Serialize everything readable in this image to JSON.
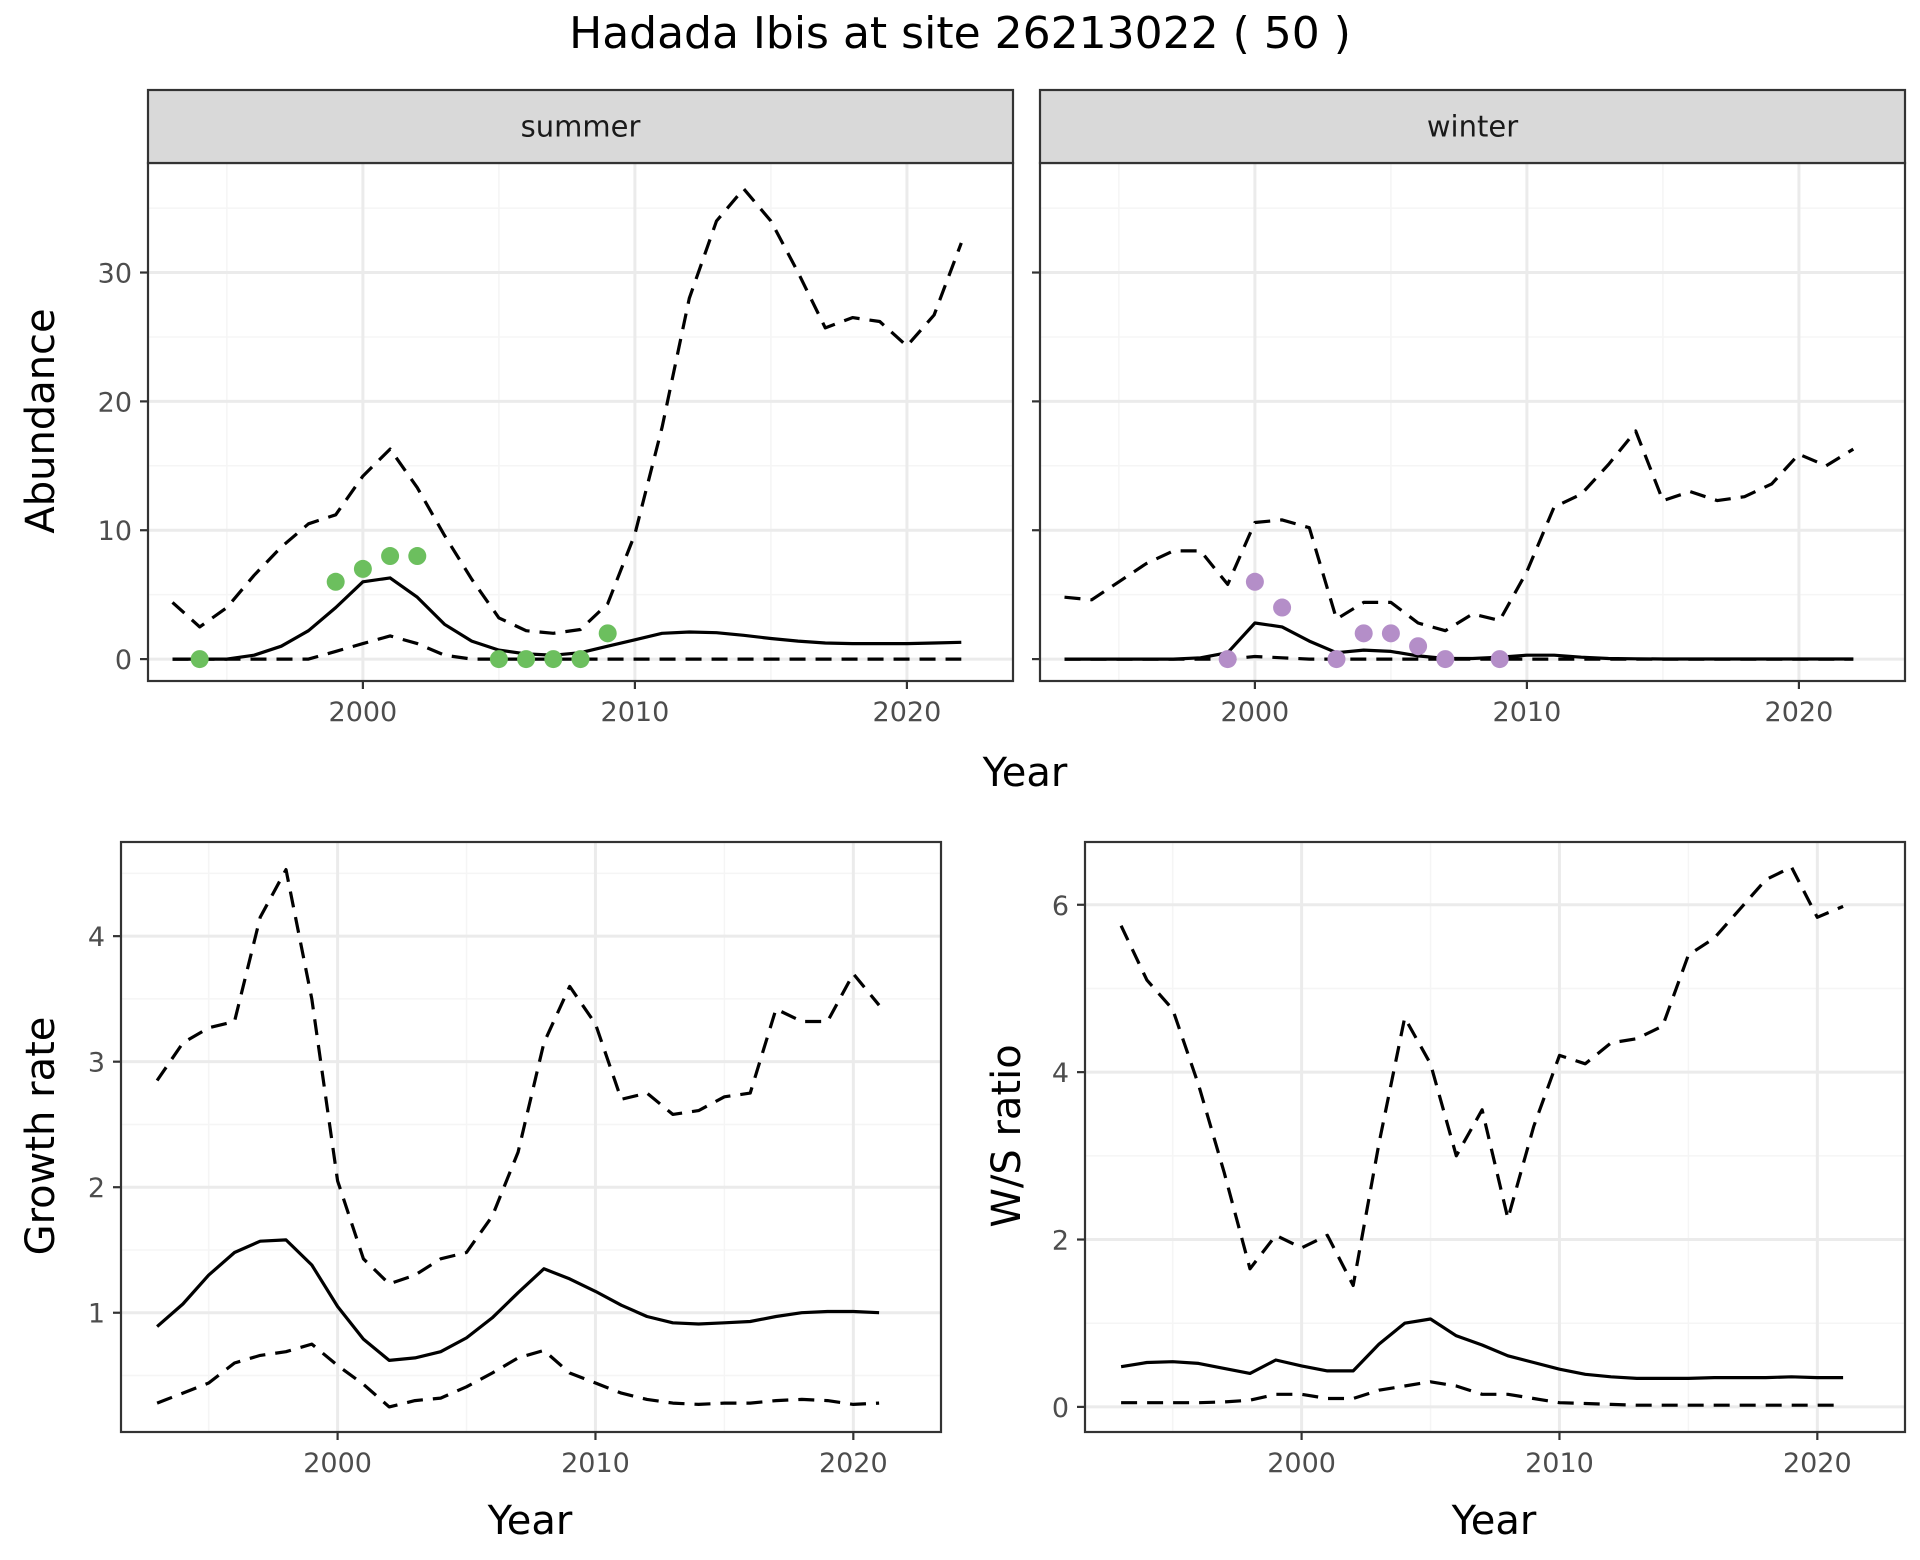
{
  "title": "Hadada Ibis at site 26213022 ( 50 )",
  "colors": {
    "summer_points": "#6cbf5e",
    "winter_points": "#b48ec8",
    "line": "#000000",
    "grid_major": "#ebebeb",
    "grid_minor": "#f5f5f5",
    "strip_fill": "#d9d9d9",
    "panel_border": "#333333"
  },
  "chart_data": [
    {
      "type": "line",
      "facet": "summer",
      "strip_label": "summer",
      "xlabel": "Year",
      "ylabel": "Abundance",
      "xlim": [
        1992.1,
        2023.9
      ],
      "ylim": [
        -1.7,
        38.5
      ],
      "xticks": [
        2000,
        2010,
        2020
      ],
      "yticks": [
        0,
        10,
        20,
        30
      ],
      "x": [
        1993,
        1994,
        1995,
        1996,
        1997,
        1998,
        1999,
        2000,
        2001,
        2002,
        2003,
        2004,
        2005,
        2006,
        2007,
        2008,
        2009,
        2010,
        2011,
        2012,
        2013,
        2014,
        2015,
        2016,
        2017,
        2018,
        2019,
        2020,
        2021,
        2022
      ],
      "series": [
        {
          "style": "solid",
          "values": [
            0,
            0,
            0,
            0.3,
            1,
            2.2,
            4,
            6,
            6.3,
            4.8,
            2.7,
            1.4,
            0.7,
            0.4,
            0.3,
            0.5,
            1,
            1.5,
            2,
            2.1,
            2.05,
            1.85,
            1.6,
            1.4,
            1.25,
            1.2,
            1.2,
            1.2,
            1.25,
            1.3
          ]
        },
        {
          "style": "dashed",
          "values": [
            4.4,
            2.5,
            4,
            6.5,
            8.7,
            10.5,
            11.2,
            14.2,
            16.3,
            13.3,
            9.6,
            6.2,
            3.2,
            2.2,
            2,
            2.3,
            4.3,
            9.7,
            18,
            28,
            34,
            36.5,
            34,
            30,
            25.7,
            26.5,
            26.2,
            24.3,
            26.7,
            32.3
          ]
        },
        {
          "style": "dashed",
          "values": [
            0,
            0,
            0,
            0,
            0,
            0,
            0.6,
            1.2,
            1.8,
            1.2,
            0.3,
            0,
            0,
            0,
            0,
            0,
            0,
            0,
            0,
            0,
            0,
            0,
            0,
            0,
            0,
            0,
            0,
            0,
            0,
            0
          ]
        }
      ],
      "points": {
        "x": [
          1994,
          1999,
          2000,
          2001,
          2002,
          2005,
          2006,
          2007,
          2008,
          2009
        ],
        "y": [
          0,
          6,
          7,
          8,
          8,
          0,
          0,
          0,
          0,
          2
        ]
      }
    },
    {
      "type": "line",
      "facet": "winter",
      "strip_label": "winter",
      "xlabel": "Year",
      "ylabel": "Abundance",
      "xlim": [
        1992.1,
        2023.9
      ],
      "ylim": [
        -1.7,
        38.5
      ],
      "xticks": [
        2000,
        2010,
        2020
      ],
      "yticks": [
        0,
        10,
        20,
        30
      ],
      "x": [
        1993,
        1994,
        1995,
        1996,
        1997,
        1998,
        1999,
        2000,
        2001,
        2002,
        2003,
        2004,
        2005,
        2006,
        2007,
        2008,
        2009,
        2010,
        2011,
        2012,
        2013,
        2014,
        2015,
        2016,
        2017,
        2018,
        2019,
        2020,
        2021,
        2022
      ],
      "series": [
        {
          "style": "solid",
          "values": [
            0,
            0,
            0,
            0,
            0,
            0.1,
            0.5,
            2.8,
            2.5,
            1.4,
            0.5,
            0.7,
            0.6,
            0.25,
            0.05,
            0.05,
            0.15,
            0.3,
            0.3,
            0.15,
            0.05,
            0.02,
            0.01,
            0.01,
            0.01,
            0.01,
            0.01,
            0.01,
            0.01,
            0.01
          ]
        },
        {
          "style": "dashed",
          "values": [
            4.8,
            4.6,
            6,
            7.4,
            8.4,
            8.4,
            5.8,
            10.6,
            10.8,
            10.2,
            3.1,
            4.4,
            4.4,
            2.8,
            2.2,
            3.5,
            3,
            6.8,
            11.8,
            12.8,
            15.1,
            17.7,
            12.3,
            13,
            12.3,
            12.6,
            13.6,
            15.9,
            15,
            16.3
          ]
        },
        {
          "style": "dashed",
          "values": [
            0,
            0,
            0,
            0,
            0,
            0,
            0,
            0.2,
            0.1,
            0,
            0,
            0,
            0,
            0,
            0,
            0,
            0,
            0,
            0,
            0,
            0,
            0,
            0,
            0,
            0,
            0,
            0,
            0,
            0,
            0
          ]
        }
      ],
      "points": {
        "x": [
          1999,
          2000,
          2001,
          2003,
          2004,
          2005,
          2006,
          2007,
          2009
        ],
        "y": [
          0,
          6,
          4,
          0,
          2,
          2,
          1,
          0,
          0
        ]
      }
    },
    {
      "type": "line",
      "xlabel": "Year",
      "ylabel": "Growth rate",
      "xlim": [
        1991.6,
        2023.4
      ],
      "ylim": [
        0.05,
        4.75
      ],
      "xticks": [
        2000,
        2010,
        2020
      ],
      "yticks": [
        1,
        2,
        3,
        4
      ],
      "x": [
        1993,
        1994,
        1995,
        1996,
        1997,
        1998,
        1999,
        2000,
        2001,
        2002,
        2003,
        2004,
        2005,
        2006,
        2007,
        2008,
        2009,
        2010,
        2011,
        2012,
        2013,
        2014,
        2015,
        2016,
        2017,
        2018,
        2019,
        2020,
        2021
      ],
      "series": [
        {
          "style": "solid",
          "values": [
            0.89,
            1.07,
            1.3,
            1.48,
            1.57,
            1.58,
            1.38,
            1.05,
            0.79,
            0.62,
            0.64,
            0.69,
            0.8,
            0.96,
            1.16,
            1.35,
            1.27,
            1.17,
            1.06,
            0.97,
            0.92,
            0.91,
            0.92,
            0.93,
            0.97,
            1,
            1.01,
            1.01,
            1
          ]
        },
        {
          "style": "dashed",
          "values": [
            2.85,
            3.15,
            3.27,
            3.32,
            4.15,
            4.53,
            3.5,
            2.05,
            1.43,
            1.23,
            1.3,
            1.43,
            1.48,
            1.77,
            2.28,
            3.15,
            3.6,
            3.3,
            2.7,
            2.75,
            2.58,
            2.61,
            2.72,
            2.75,
            3.42,
            3.32,
            3.32,
            3.7,
            3.45
          ]
        },
        {
          "style": "dashed",
          "values": [
            0.28,
            0.36,
            0.44,
            0.6,
            0.66,
            0.69,
            0.75,
            0.58,
            0.43,
            0.25,
            0.3,
            0.32,
            0.41,
            0.52,
            0.64,
            0.7,
            0.52,
            0.44,
            0.36,
            0.31,
            0.28,
            0.27,
            0.28,
            0.28,
            0.3,
            0.31,
            0.3,
            0.27,
            0.28
          ]
        }
      ]
    },
    {
      "type": "line",
      "xlabel": "Year",
      "ylabel": "W/S ratio",
      "xlim": [
        1991.6,
        2023.4
      ],
      "ylim": [
        -0.3,
        6.75
      ],
      "xticks": [
        2000,
        2010,
        2020
      ],
      "yticks": [
        0,
        2,
        4,
        6
      ],
      "x": [
        1993,
        1994,
        1995,
        1996,
        1997,
        1998,
        1999,
        2000,
        2001,
        2002,
        2003,
        2004,
        2005,
        2006,
        2007,
        2008,
        2009,
        2010,
        2011,
        2012,
        2013,
        2014,
        2015,
        2016,
        2017,
        2018,
        2019,
        2020,
        2021
      ],
      "series": [
        {
          "style": "solid",
          "values": [
            0.48,
            0.53,
            0.54,
            0.52,
            0.46,
            0.4,
            0.56,
            0.49,
            0.43,
            0.43,
            0.75,
            1,
            1.05,
            0.85,
            0.74,
            0.61,
            0.53,
            0.45,
            0.39,
            0.36,
            0.34,
            0.34,
            0.34,
            0.35,
            0.35,
            0.35,
            0.36,
            0.35,
            0.35
          ]
        },
        {
          "style": "dashed",
          "values": [
            5.75,
            5.1,
            4.75,
            3.85,
            2.8,
            1.65,
            2.05,
            1.9,
            2.05,
            1.45,
            3.15,
            4.65,
            4.1,
            3,
            3.55,
            2.25,
            3.35,
            4.2,
            4.1,
            4.35,
            4.4,
            4.55,
            5.4,
            5.6,
            5.95,
            6.3,
            6.45,
            5.85,
            5.98
          ]
        },
        {
          "style": "dashed",
          "values": [
            0.05,
            0.05,
            0.05,
            0.05,
            0.06,
            0.08,
            0.15,
            0.15,
            0.1,
            0.1,
            0.2,
            0.25,
            0.3,
            0.25,
            0.15,
            0.15,
            0.1,
            0.05,
            0.04,
            0.03,
            0.02,
            0.02,
            0.02,
            0.02,
            0.02,
            0.02,
            0.02,
            0.02,
            0.02
          ]
        }
      ]
    }
  ]
}
